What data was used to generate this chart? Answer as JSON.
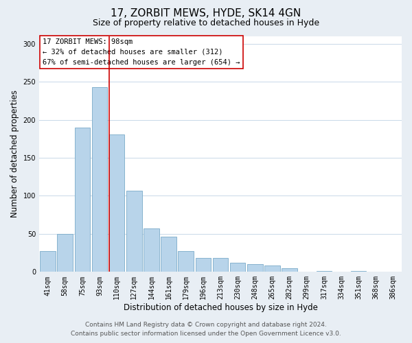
{
  "title": "17, ZORBIT MEWS, HYDE, SK14 4GN",
  "subtitle": "Size of property relative to detached houses in Hyde",
  "xlabel": "Distribution of detached houses by size in Hyde",
  "ylabel": "Number of detached properties",
  "categories": [
    "41sqm",
    "58sqm",
    "75sqm",
    "93sqm",
    "110sqm",
    "127sqm",
    "144sqm",
    "161sqm",
    "179sqm",
    "196sqm",
    "213sqm",
    "230sqm",
    "248sqm",
    "265sqm",
    "282sqm",
    "299sqm",
    "317sqm",
    "334sqm",
    "351sqm",
    "368sqm",
    "386sqm"
  ],
  "values": [
    27,
    50,
    190,
    243,
    181,
    107,
    57,
    46,
    27,
    18,
    18,
    12,
    10,
    8,
    5,
    0,
    1,
    0,
    1,
    0,
    0
  ],
  "bar_color": "#b8d4ea",
  "bar_edge_color": "#7aaac8",
  "vline_x": 3.55,
  "vline_color": "#cc0000",
  "annotation_title": "17 ZORBIT MEWS: 98sqm",
  "annotation_line1": "← 32% of detached houses are smaller (312)",
  "annotation_line2": "67% of semi-detached houses are larger (654) →",
  "annotation_box_color": "#ffffff",
  "annotation_box_edge_color": "#cc0000",
  "ylim": [
    0,
    310
  ],
  "yticks": [
    0,
    50,
    100,
    150,
    200,
    250,
    300
  ],
  "footer_line1": "Contains HM Land Registry data © Crown copyright and database right 2024.",
  "footer_line2": "Contains public sector information licensed under the Open Government Licence v3.0.",
  "bg_color": "#e8eef4",
  "plot_bg_color": "#ffffff",
  "title_fontsize": 11,
  "subtitle_fontsize": 9,
  "axis_label_fontsize": 8.5,
  "tick_fontsize": 7,
  "annot_fontsize": 7.5,
  "footer_fontsize": 6.5
}
